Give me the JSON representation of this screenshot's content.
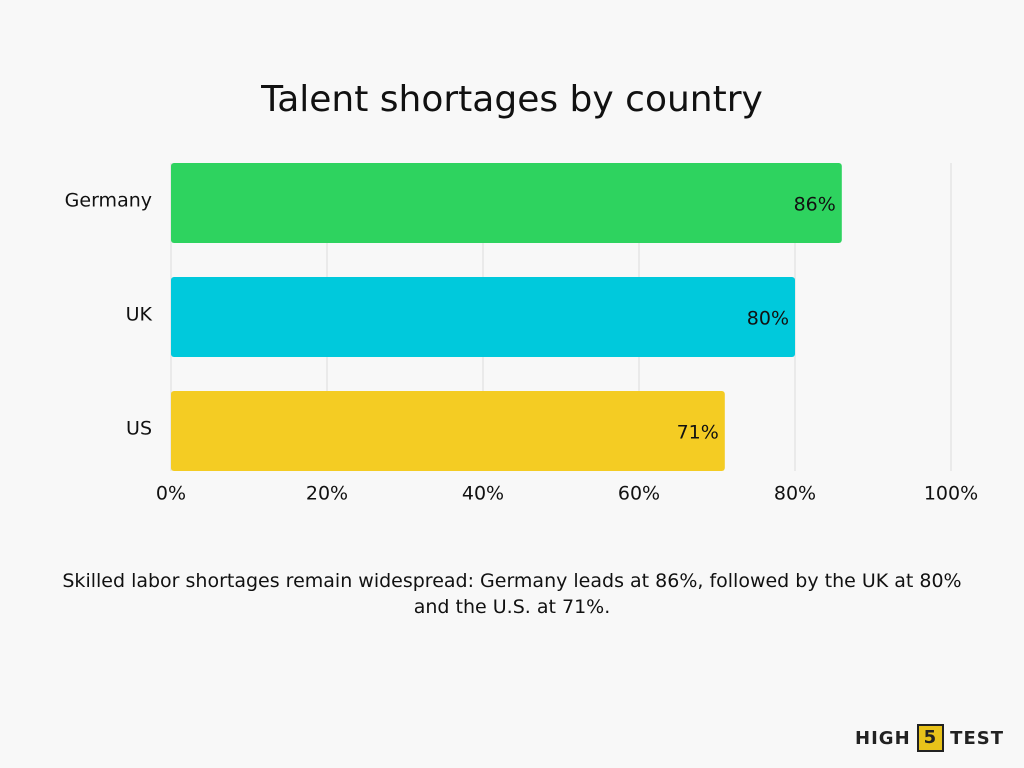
{
  "chart_data": {
    "type": "bar",
    "orientation": "horizontal",
    "title": "Talent shortages by country",
    "categories": [
      "Germany",
      "UK",
      "US"
    ],
    "values": [
      86,
      80,
      71
    ],
    "value_labels": [
      "86%",
      "80%",
      "71%"
    ],
    "colors": [
      "#2ed35f",
      "#00c9dc",
      "#f4cc23"
    ],
    "xlim": [
      0,
      100
    ],
    "xticks": [
      {
        "value": 0,
        "label": "0%"
      },
      {
        "value": 20,
        "label": "20%"
      },
      {
        "value": 40,
        "label": "40%"
      },
      {
        "value": 60,
        "label": "60%"
      },
      {
        "value": 80,
        "label": "80%"
      },
      {
        "value": 100,
        "label": "100%"
      }
    ],
    "grid": true,
    "caption": "Skilled labor shortages remain widespread: Germany leads at 86%, followed by the UK at 80% and the U.S. at 71%."
  },
  "logo": {
    "left": "HIGH",
    "middle": "5",
    "right": "TEST"
  }
}
